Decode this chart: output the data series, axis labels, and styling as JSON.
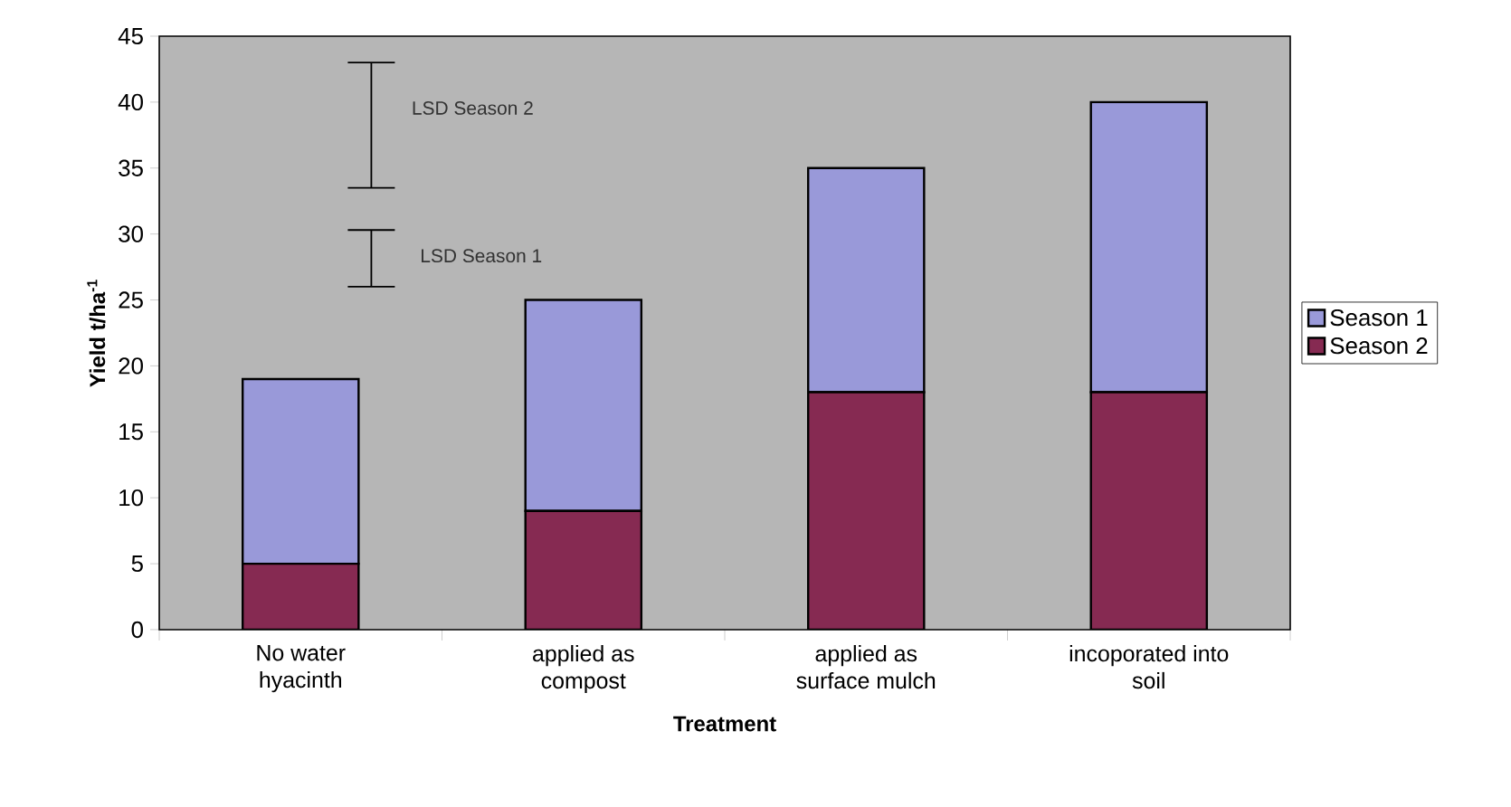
{
  "chart_data": {
    "type": "bar",
    "stacked": true,
    "xlabel": "Treatment",
    "ylabel": "Yield t/ha$^{-1}$",
    "categories": [
      "No water hyacinth",
      "applied as compost",
      "applied as surface mulch",
      "incoporated into soil"
    ],
    "series": [
      {
        "name": "Season 2",
        "color": "#862a52",
        "values": [
          5,
          9,
          18,
          18
        ]
      },
      {
        "name": "Season 1",
        "color": "#9999d9",
        "values": [
          14,
          16,
          17,
          22
        ]
      }
    ],
    "ylim": [
      0,
      45
    ],
    "yticks": [
      0,
      5,
      10,
      15,
      20,
      25,
      30,
      35,
      40,
      45
    ],
    "grid": false,
    "legend": "right",
    "annotations": [
      "LSD Season 2",
      "LSD Season 1"
    ]
  }
}
